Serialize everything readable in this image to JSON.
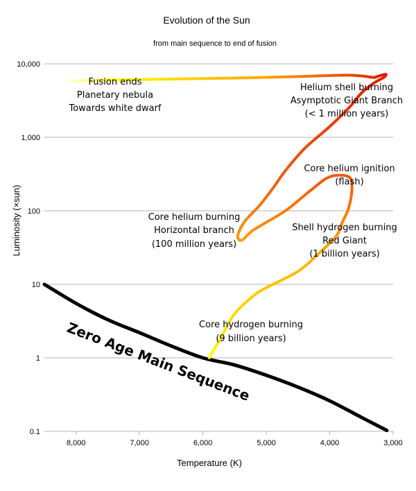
{
  "chart_data": {
    "type": "line",
    "title": "Evolution of the Sun",
    "subtitle": "from main sequence to end of fusion",
    "xlabel": "Temperature (K)",
    "ylabel": "Luminosity (×sun)",
    "x_reversed": true,
    "y_scale": "log",
    "xlim": [
      8500,
      3000
    ],
    "ylim": [
      0.1,
      10000
    ],
    "x_ticks": [
      "8,000",
      "7,000",
      "6,000",
      "5,000",
      "4,000",
      "3,000"
    ],
    "x_tick_values": [
      8000,
      7000,
      6000,
      5000,
      4000,
      3000
    ],
    "y_ticks": [
      "10,000",
      "1,000",
      "100",
      "10",
      "1",
      "0.1"
    ],
    "y_tick_values": [
      10000,
      1000,
      100,
      10,
      1,
      0.1
    ],
    "grid": "horizontal",
    "series": [
      {
        "role": "zero-age-main-sequence",
        "color": "#000000",
        "points": [
          [
            8500,
            10
          ],
          [
            8000,
            5.5
          ],
          [
            7500,
            3.3
          ],
          [
            7000,
            2.2
          ],
          [
            6500,
            1.45
          ],
          [
            6000,
            1.0
          ],
          [
            5500,
            0.8
          ],
          [
            5000,
            0.58
          ],
          [
            4500,
            0.4
          ],
          [
            4000,
            0.26
          ],
          [
            3500,
            0.155
          ],
          [
            3100,
            0.103
          ]
        ]
      },
      {
        "role": "sun-evolution-track",
        "colors": [
          "#ffff00",
          "#ff9900",
          "#ee2200"
        ],
        "points": [
          [
            5900,
            1.0
          ],
          [
            5700,
            2.0
          ],
          [
            5500,
            4.0
          ],
          [
            5200,
            7.0
          ],
          [
            5000,
            9.0
          ],
          [
            4500,
            15
          ],
          [
            4200,
            25
          ],
          [
            3900,
            45
          ],
          [
            3800,
            70
          ],
          [
            3700,
            110
          ],
          [
            3650,
            200
          ],
          [
            3700,
            290
          ],
          [
            4000,
            290
          ],
          [
            4300,
            190
          ],
          [
            4700,
            100
          ],
          [
            5200,
            55
          ],
          [
            5380,
            40
          ],
          [
            5450,
            45
          ],
          [
            5350,
            70
          ],
          [
            5100,
            120
          ],
          [
            4900,
            200
          ],
          [
            4700,
            350
          ],
          [
            4400,
            700
          ],
          [
            4000,
            1400
          ],
          [
            3700,
            2500
          ],
          [
            3500,
            4000
          ],
          [
            3300,
            5500
          ],
          [
            3150,
            6500
          ],
          [
            3120,
            7200
          ],
          [
            3300,
            6500
          ],
          [
            3700,
            7000
          ],
          [
            4500,
            6700
          ],
          [
            5500,
            6400
          ],
          [
            6500,
            6200
          ],
          [
            7500,
            6000
          ],
          [
            8250,
            5800
          ]
        ]
      }
    ],
    "annotations": {
      "zams": "Zero Age Main Sequence",
      "core_hydrogen": [
        "Core hydrogen burning",
        "(9 billion years)"
      ],
      "shell_hydrogen": [
        "Shell hydrogen burning",
        "Red Giant",
        "(1 billion years)"
      ],
      "core_helium_ignition": [
        "Core helium ignition",
        "(flash)"
      ],
      "core_helium_burning": [
        "Core helium burning",
        "Horizontal branch",
        "(100 million years)"
      ],
      "helium_shell": [
        "Helium shell burning",
        "Asymptotic Giant Branch",
        "(< 1 million years)"
      ],
      "fusion_ends": [
        "Fusion ends",
        "Planetary nebula",
        "Towards white dwarf"
      ]
    }
  }
}
